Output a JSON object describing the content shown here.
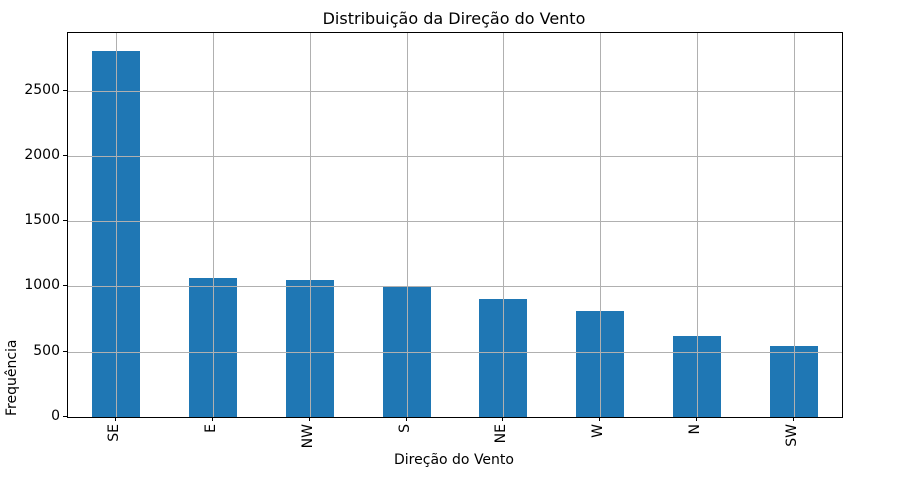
{
  "chart_data": {
    "type": "bar",
    "title": "Distribuição da Direção do Vento",
    "xlabel": "Direção do Vento",
    "ylabel": "Frequência",
    "categories": [
      "SE",
      "E",
      "NW",
      "S",
      "NE",
      "W",
      "N",
      "SW"
    ],
    "values": [
      2800,
      1065,
      1050,
      1000,
      900,
      810,
      620,
      545
    ],
    "ylim": [
      0,
      2940
    ],
    "yticks": [
      0,
      500,
      1000,
      1500,
      2000,
      2500
    ],
    "grid": true,
    "grid_over_bars": true,
    "legend": "none",
    "x_tick_rotation": 90,
    "colors": {
      "bar": "#1f77b4",
      "grid": "#b0b0b0",
      "spine": "#000000",
      "text": "#000000",
      "background": "#ffffff"
    }
  }
}
